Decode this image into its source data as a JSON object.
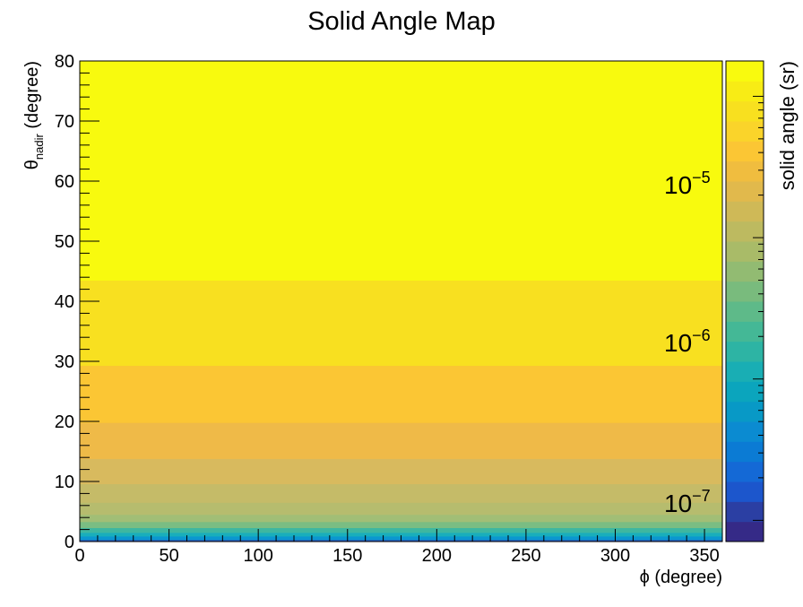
{
  "chart_data": {
    "type": "heatmap",
    "title": "Solid Angle Map",
    "xlabel": {
      "symbol": "ϕ",
      "rest": " (degree)"
    },
    "ylabel": {
      "symbol": "θ",
      "sub": "nadir",
      "rest": " (degree)"
    },
    "zlabel": "solid angle (sr)",
    "xlim": [
      0,
      360
    ],
    "ylim": [
      0,
      80
    ],
    "z_scale": "log",
    "xticks": [
      0,
      50,
      100,
      150,
      200,
      250,
      300,
      350
    ],
    "yticks": [
      0,
      10,
      20,
      30,
      40,
      50,
      60,
      70,
      80
    ],
    "zticks": [
      {
        "base": "10",
        "exp": "−5",
        "value": 1e-05
      },
      {
        "base": "10",
        "exp": "−6",
        "value": 1e-06
      },
      {
        "base": "10",
        "exp": "−7",
        "value": 1e-07
      }
    ],
    "grid": false,
    "bands": [
      {
        "theta_min": 0.0,
        "theta_max": 0.3,
        "color": "#2a52b8"
      },
      {
        "theta_min": 0.3,
        "theta_max": 0.9,
        "color": "#0b97cf"
      },
      {
        "theta_min": 0.9,
        "theta_max": 1.5,
        "color": "#19aebb"
      },
      {
        "theta_min": 1.5,
        "theta_max": 2.3,
        "color": "#3eb7a0"
      },
      {
        "theta_min": 2.3,
        "theta_max": 3.3,
        "color": "#7abd83"
      },
      {
        "theta_min": 3.3,
        "theta_max": 4.5,
        "color": "#a1be76"
      },
      {
        "theta_min": 4.5,
        "theta_max": 6.5,
        "color": "#b6bc6e"
      },
      {
        "theta_min": 6.5,
        "theta_max": 9.6,
        "color": "#c5bb68"
      },
      {
        "theta_min": 9.6,
        "theta_max": 13.8,
        "color": "#d8ba5e"
      },
      {
        "theta_min": 13.8,
        "theta_max": 19.8,
        "color": "#efba48"
      },
      {
        "theta_min": 19.8,
        "theta_max": 29.3,
        "color": "#fbc634"
      },
      {
        "theta_min": 29.3,
        "theta_max": 43.5,
        "color": "#f8e020"
      },
      {
        "theta_min": 43.5,
        "theta_max": 80.0,
        "color": "#f8fa0e"
      }
    ],
    "palette": [
      "#352a87",
      "#2b3fa3",
      "#1c56cc",
      "#1469d6",
      "#0b7bd4",
      "#0b8bd1",
      "#0899c6",
      "#0ba5bd",
      "#19aeb4",
      "#2db4a4",
      "#44b896",
      "#5eba89",
      "#79bb7d",
      "#92bb72",
      "#a9bb68",
      "#bdba60",
      "#cfb957",
      "#e1b94c",
      "#f0bd3f",
      "#fbc634",
      "#fad42a",
      "#f8e01f",
      "#f8ec15",
      "#f9fa0e"
    ]
  }
}
